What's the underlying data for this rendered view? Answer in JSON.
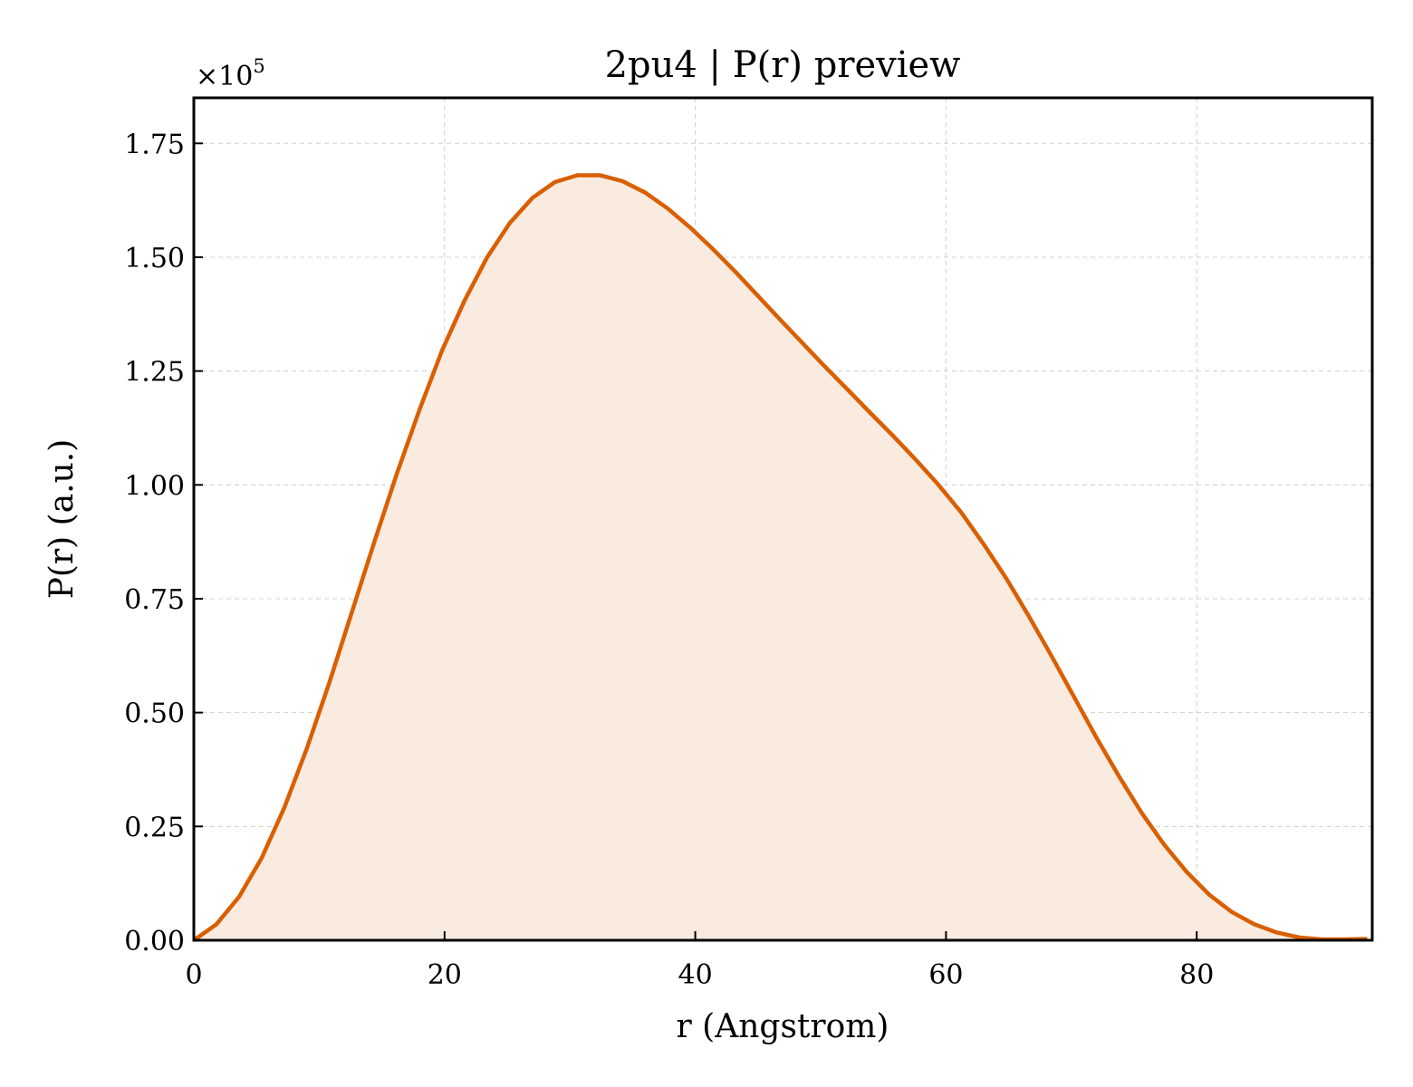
{
  "chart_data": {
    "type": "area",
    "title": "2pu4 | P(r) preview",
    "xlabel": "r (Angstrom)",
    "ylabel": "P(r) (a.u.)",
    "y_scale_label": "×10",
    "y_scale_exponent": "5",
    "xlim": [
      0,
      94
    ],
    "ylim": [
      0,
      1.85
    ],
    "y_multiplier": 100000,
    "xticks": [
      0,
      20,
      40,
      60,
      80
    ],
    "xtick_labels": [
      "0",
      "20",
      "40",
      "60",
      "80"
    ],
    "yticks": [
      0,
      0.25,
      0.5,
      0.75,
      1.0,
      1.25,
      1.5,
      1.75
    ],
    "ytick_labels": [
      "0.00",
      "0.25",
      "0.50",
      "0.75",
      "1.00",
      "1.25",
      "1.50",
      "1.75"
    ],
    "grid": true,
    "line_color": "#d95f02",
    "fill_color": "#f9ebe0",
    "series": [
      {
        "x": [
          0,
          1.8,
          3.6,
          5.4,
          7.2,
          9.0,
          10.8,
          12.6,
          14.4,
          16.2,
          18.0,
          19.8,
          21.6,
          23.4,
          25.2,
          27.0,
          28.8,
          30.6,
          32.4,
          34.2,
          36.0,
          37.8,
          39.6,
          41.4,
          43.2,
          45.0,
          46.8,
          48.6,
          50.4,
          52.2,
          54.0,
          55.8,
          57.6,
          59.4,
          61.2,
          63.0,
          64.8,
          66.6,
          68.4,
          70.2,
          72.0,
          73.8,
          75.6,
          77.4,
          79.2,
          81.0,
          82.8,
          84.6,
          86.4,
          88.2,
          90.0,
          91.8,
          93.6
        ],
        "y": [
          0.0,
          0.035,
          0.095,
          0.18,
          0.29,
          0.42,
          0.565,
          0.72,
          0.875,
          1.025,
          1.165,
          1.295,
          1.405,
          1.5,
          1.575,
          1.63,
          1.665,
          1.68,
          1.68,
          1.667,
          1.642,
          1.607,
          1.565,
          1.518,
          1.468,
          1.415,
          1.362,
          1.31,
          1.258,
          1.208,
          1.157,
          1.107,
          1.055,
          1.0,
          0.94,
          0.87,
          0.795,
          0.712,
          0.625,
          0.535,
          0.445,
          0.36,
          0.28,
          0.21,
          0.15,
          0.1,
          0.062,
          0.035,
          0.017,
          0.006,
          0.002,
          0.002,
          0.003
        ]
      }
    ]
  }
}
